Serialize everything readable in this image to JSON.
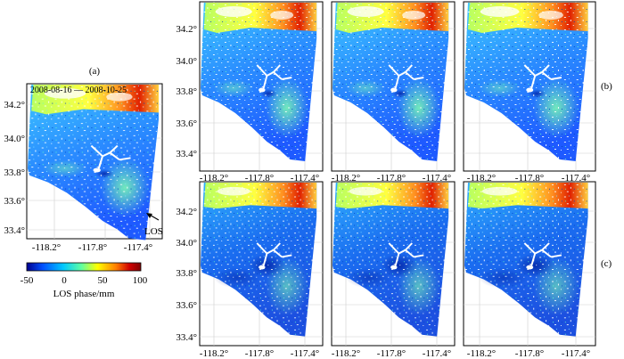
{
  "panel_a": {
    "label": "(a)",
    "date_range": "2008-08-16 — 2008-10-25",
    "los_label": "LOS",
    "lat_ticks": [
      "34.2°",
      "34.0°",
      "33.8°",
      "33.6°",
      "33.4°"
    ],
    "lon_ticks": [
      "-118.2°",
      "-117.8°",
      "-117.4°"
    ]
  },
  "grid_panels": {
    "lat_ticks": [
      "34.2°",
      "34.0°",
      "33.8°",
      "33.6°",
      "33.4°"
    ],
    "lon_ticks": [
      "-118.2°",
      "-117.8°",
      "-117.4°"
    ]
  },
  "row_labels": {
    "b": "(b)",
    "c": "(c)"
  },
  "colorbar": {
    "ticks": [
      "-50",
      "0",
      "50",
      "100"
    ],
    "title": "LOS phase/mm",
    "stops": [
      "#00008f",
      "#0050ff",
      "#00c8ff",
      "#60ffa0",
      "#ffff00",
      "#ff8000",
      "#d00000",
      "#800000"
    ]
  }
}
